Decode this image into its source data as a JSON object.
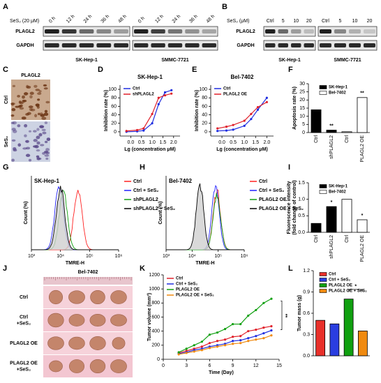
{
  "panel_labels": [
    "A",
    "B",
    "C",
    "D",
    "E",
    "F",
    "G",
    "H",
    "I",
    "J",
    "K",
    "L"
  ],
  "blot_a": {
    "treatment": "SeS₂ (20 μM)",
    "lanes": [
      "0 h",
      "12 h",
      "24 h",
      "36 h",
      "48 h"
    ],
    "rows": [
      "PLAGL2",
      "GAPDH"
    ],
    "cells": [
      "SK-Hep-1",
      "SMMC-7721"
    ]
  },
  "blot_b": {
    "treatment": "SeS₂ (μM)",
    "lanes": [
      "Ctrl",
      "5",
      "10",
      "20"
    ],
    "rows": [
      "PLAGL2",
      "GAPDH"
    ],
    "cells": [
      "SK-Hep-1",
      "SMMC-7721"
    ]
  },
  "ihc": {
    "title": "PLAGL2",
    "rows": [
      "Ctrl",
      "SeS₂"
    ]
  },
  "tumor_photo": {
    "title": "Bel-7402",
    "rows": [
      [
        "Ctrl"
      ],
      [
        "Ctrl",
        "+SeS₂"
      ],
      [
        "PLAGL2 OE"
      ],
      [
        "PLAGL2 OE",
        "+SeS₂"
      ]
    ]
  },
  "chart_data": [
    {
      "type": "line",
      "title": "SK-Hep-1",
      "xlabel": "Lg (concentration μM)",
      "ylabel": "Inhibition rate (%)",
      "x": [
        -0.2,
        0.3,
        0.6,
        1.0,
        1.3,
        1.6,
        1.9
      ],
      "series": [
        {
          "name": "Ctrl",
          "color": "#1f2ee0",
          "values": [
            0,
            1,
            3,
            20,
            65,
            93,
            98
          ]
        },
        {
          "name": "shPLAGL2",
          "color": "#e0202a",
          "values": [
            2,
            4,
            8,
            42,
            80,
            86,
            90
          ]
        }
      ],
      "xlim": [
        -0.5,
        2.3
      ],
      "ylim": [
        -10,
        110
      ],
      "xticks": [
        {
          "value": 0,
          "label": "0.0"
        },
        0.5,
        {
          "value": 1,
          "label": "1.0"
        },
        1.5,
        {
          "value": 2,
          "label": "2.0"
        }
      ],
      "yticks": [
        0,
        20,
        40,
        60,
        80,
        100
      ],
      "legend": "upper left"
    },
    {
      "type": "line",
      "title": "Bel-7402",
      "xlabel": "Lg (concentration μM)",
      "ylabel": "Inhibition rate (%)",
      "x": [
        -0.2,
        0.2,
        0.5,
        1.0,
        1.3,
        1.6,
        2.0
      ],
      "series": [
        {
          "name": "Ctrl",
          "color": "#1f2ee0",
          "values": [
            2,
            3,
            5,
            14,
            30,
            52,
            80
          ]
        },
        {
          "name": "PLAGL2 OE",
          "color": "#e0202a",
          "values": [
            8,
            12,
            16,
            26,
            42,
            58,
            70
          ]
        }
      ],
      "xlim": [
        -0.5,
        2.3
      ],
      "ylim": [
        -10,
        110
      ],
      "xticks": [
        {
          "value": 0,
          "label": "0.0"
        },
        0.5,
        {
          "value": 1,
          "label": "1.0"
        },
        1.5,
        {
          "value": 2,
          "label": "2.0"
        }
      ],
      "yticks": [
        0,
        20,
        40,
        60,
        80,
        100
      ],
      "legend": "upper left"
    },
    {
      "type": "bar",
      "ylabel": "Apoptosis rate (%)",
      "categories": [
        "Ctrl",
        "shPLAGL2",
        "Ctrl",
        "PLAGL2 OE"
      ],
      "series": [
        {
          "name": "SK-Hep-1",
          "color": "#000000",
          "values": [
            14,
            1.5,
            null,
            null
          ]
        },
        {
          "name": "Bel-7402",
          "color": "#ffffff",
          "values": [
            null,
            null,
            0.5,
            21.5
          ]
        }
      ],
      "annotations": [
        null,
        "**",
        null,
        "**"
      ],
      "ylim": [
        0,
        30
      ],
      "yticks": [
        0,
        5,
        10,
        15,
        20,
        25,
        30
      ],
      "legend": "upper right"
    },
    {
      "type": "density",
      "title": "SK-Hep-1",
      "xlabel": "TMRE-H",
      "ylabel": "Count (%)",
      "xlim": [
        3,
        6
      ],
      "ylim": [
        0,
        110
      ],
      "xticks": [
        {
          "value": 3,
          "label": "10³"
        },
        {
          "value": 4,
          "label": "10⁴"
        },
        {
          "value": 5,
          "label": "10⁵"
        },
        {
          "value": 6,
          "label": "10⁶"
        }
      ],
      "series": [
        {
          "name": "Ctrl",
          "color": "#ff2020",
          "peak": 4.6,
          "height": 92
        },
        {
          "name": "Ctrl + SeS₂",
          "color": "#2020ff",
          "peak": 3.95,
          "height": 100
        },
        {
          "name": "shPLAGL2",
          "color": "#10a010",
          "peak": 4.1,
          "height": 88
        },
        {
          "name": "shPLAGL2 + SeS₂",
          "color": "#000000",
          "peak": 4.0,
          "height": 95
        }
      ],
      "legend": "right"
    },
    {
      "type": "density",
      "title": "Bel-7402",
      "xlabel": "TMRE-H",
      "ylabel": "Count (%)",
      "xlim": [
        3,
        6
      ],
      "ylim": [
        0,
        110
      ],
      "xticks": [
        {
          "value": 3,
          "label": "10³"
        },
        {
          "value": 4,
          "label": "10⁴"
        },
        {
          "value": 5,
          "label": "10⁵"
        },
        {
          "value": 6,
          "label": "10⁶"
        }
      ],
      "series": [
        {
          "name": "Ctrl",
          "color": "#ff2020",
          "peak": 4.95,
          "height": 90
        },
        {
          "name": "Ctrl + SeS₂",
          "color": "#2020ff",
          "peak": 4.9,
          "height": 95
        },
        {
          "name": "PLAGL2 OE",
          "color": "#10a010",
          "peak": 4.95,
          "height": 85
        },
        {
          "name": "PLAGL2 OE + SeS₂",
          "color": "#000000",
          "peak": 4.3,
          "height": 100
        }
      ],
      "legend": "right"
    },
    {
      "type": "bar",
      "ylabel": [
        "Fluorescence intensity",
        "(fold change of control)"
      ],
      "categories": [
        "Ctrl",
        "shPLAGL2",
        "Ctrl",
        "PLAGL2 OE"
      ],
      "series": [
        {
          "name": "SK-Hep-1",
          "color": "#000000",
          "values": [
            0.27,
            0.78,
            null,
            null
          ]
        },
        {
          "name": "Bel-7402",
          "color": "#ffffff",
          "values": [
            null,
            null,
            1.0,
            0.38
          ]
        }
      ],
      "annotations": [
        null,
        "*",
        null,
        "*"
      ],
      "ylim": [
        0,
        1.5
      ],
      "yticks": [
        {
          "value": 0,
          "label": "0.0"
        },
        0.5,
        {
          "value": 1,
          "label": "1.0"
        },
        1.5
      ],
      "legend": "upper right"
    },
    {
      "type": "line",
      "xlabel": "Time (Day)",
      "ylabel": "Tumor volume (mm³)",
      "x": [
        2,
        3,
        4,
        5,
        6,
        7,
        8,
        9,
        10,
        11,
        12,
        13,
        14
      ],
      "series": [
        {
          "name": "Ctrl",
          "color": "#e0202a",
          "values": [
            90,
            120,
            150,
            180,
            230,
            260,
            280,
            320,
            330,
            400,
            420,
            450,
            470
          ]
        },
        {
          "name": "Ctrl + SeS₂",
          "color": "#1f2ee0",
          "values": [
            80,
            100,
            130,
            150,
            180,
            200,
            220,
            260,
            270,
            300,
            330,
            370,
            410
          ]
        },
        {
          "name": "PLAGL2 OE",
          "color": "#10a010",
          "values": [
            100,
            150,
            200,
            250,
            350,
            380,
            430,
            500,
            500,
            620,
            700,
            800,
            860
          ]
        },
        {
          "name": "PLAGL2 OE + SeS₂",
          "color": "#f08a10",
          "values": [
            70,
            90,
            110,
            130,
            160,
            180,
            200,
            220,
            230,
            260,
            280,
            300,
            340
          ]
        }
      ],
      "annotation": "**",
      "xlim": [
        0,
        15
      ],
      "ylim": [
        0,
        1200
      ],
      "xticks": [
        0,
        3,
        6,
        9,
        12,
        15
      ],
      "yticks": [
        0,
        200,
        400,
        600,
        800,
        1000,
        1200
      ],
      "legend": "upper left"
    },
    {
      "type": "bar",
      "ylabel": "Tumor mass (g)",
      "categories": [
        null,
        null,
        null,
        null
      ],
      "series": [
        {
          "name": "Ctrl",
          "color": "#e8302a",
          "values": [
            0.5,
            null,
            null,
            null
          ]
        },
        {
          "name": "Ctrl + SeS₂",
          "color": "#2a3ee0",
          "values": [
            null,
            0.45,
            null,
            null
          ]
        },
        {
          "name": "PLAGL2 OE",
          "color": "#10a010",
          "values": [
            null,
            null,
            0.8,
            null
          ]
        },
        {
          "name": "PLAGL2 OE + SeS₂",
          "color": "#f08a10",
          "values": [
            null,
            null,
            null,
            0.35
          ]
        }
      ],
      "annotation": "*",
      "ylim": [
        0,
        1.2
      ],
      "yticks": [
        {
          "value": 0,
          "label": "0.0"
        },
        0.3,
        0.6,
        0.9,
        1.2
      ],
      "legend": "upper right"
    }
  ]
}
